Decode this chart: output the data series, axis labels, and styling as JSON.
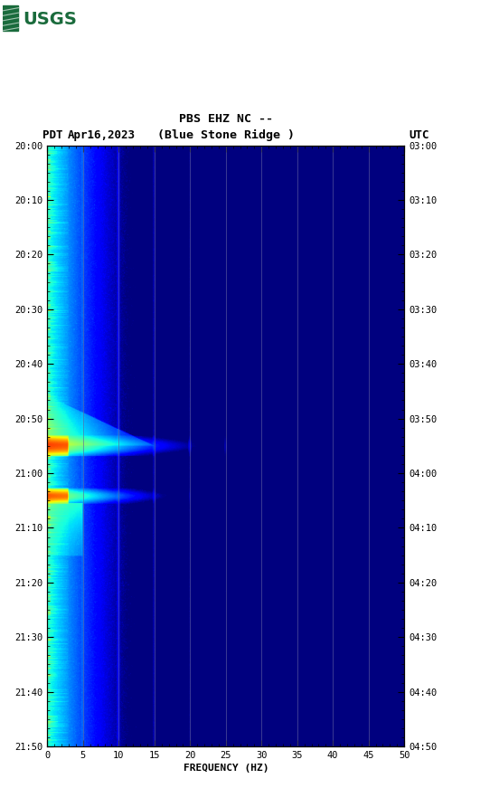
{
  "title_line1": "PBS EHZ NC --",
  "title_line2": "(Blue Stone Ridge )",
  "left_label": "PDT",
  "date_label": "Apr16,2023",
  "right_label": "UTC",
  "xlabel": "FREQUENCY (HZ)",
  "freq_min": 0,
  "freq_max": 50,
  "ytick_labels_left": [
    "20:00",
    "20:10",
    "20:20",
    "20:30",
    "20:40",
    "20:50",
    "21:00",
    "21:10",
    "21:20",
    "21:30",
    "21:40",
    "21:50"
  ],
  "ytick_labels_right": [
    "03:00",
    "03:10",
    "03:20",
    "03:30",
    "03:40",
    "03:50",
    "04:00",
    "04:10",
    "04:20",
    "04:30",
    "04:40",
    "04:50"
  ],
  "ytick_positions": [
    0,
    1,
    2,
    3,
    4,
    5,
    6,
    7,
    8,
    9,
    10,
    11
  ],
  "xtick_positions": [
    0,
    5,
    10,
    15,
    20,
    25,
    30,
    35,
    40,
    45,
    50
  ],
  "xtick_labels": [
    "0",
    "5",
    "10",
    "15",
    "20",
    "25",
    "30",
    "35",
    "40",
    "45",
    "50"
  ],
  "fig_bg": "#ffffff",
  "usgs_green": "#1a6b3c",
  "fig_width": 5.52,
  "fig_height": 8.92
}
